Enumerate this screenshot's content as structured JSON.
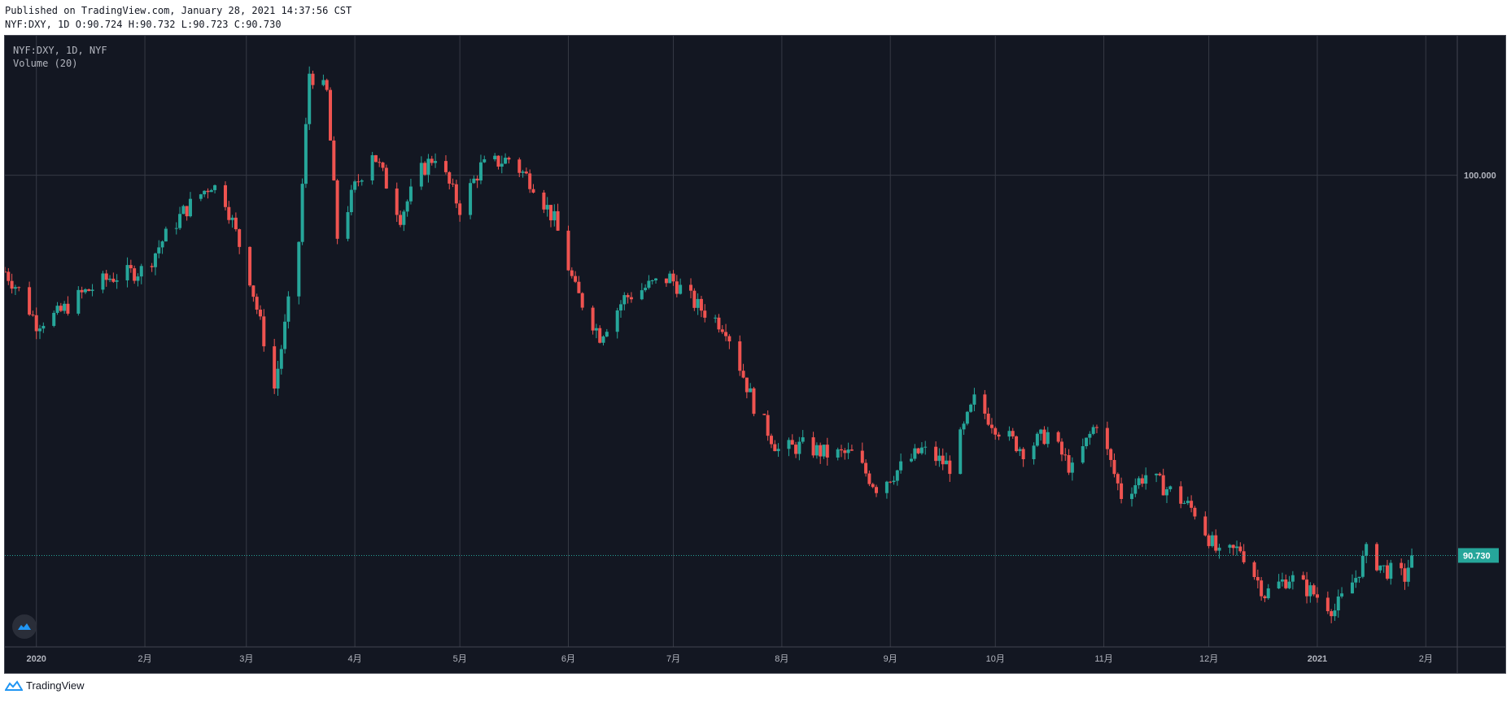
{
  "header": {
    "published": "Published on TradingView.com, January 28, 2021 14:37:56 CST",
    "symbol_line": "NYF:DXY, 1D O:90.724 H:90.732 L:90.723 C:90.730"
  },
  "legend": {
    "symbol": "NYF:DXY, 1D, NYF",
    "volume": "Volume (20)"
  },
  "footer": {
    "brand": "TradingView"
  },
  "colors": {
    "up": "#26a69a",
    "down": "#ef5350",
    "background": "#131722",
    "grid": "#363a45"
  },
  "chart_data": {
    "type": "candlestick",
    "ylim": [
      88.5,
      103.4
    ],
    "y_ticks": [
      {
        "value": 100,
        "label": "100.000"
      }
    ],
    "last_price": {
      "value": 90.73,
      "label": "90.730"
    },
    "x_ticks": [
      "2020",
      "2月",
      "3月",
      "4月",
      "5月",
      "6月",
      "7月",
      "8月",
      "9月",
      "10月",
      "11月",
      "12月",
      "2021",
      "2月"
    ],
    "x_tick_bold": [
      true,
      false,
      false,
      false,
      false,
      false,
      false,
      false,
      false,
      false,
      false,
      false,
      true,
      false
    ],
    "x_tick_dates": [
      "2020-01-01",
      "2020-02-01",
      "2020-03-01",
      "2020-04-01",
      "2020-05-01",
      "2020-06-01",
      "2020-07-01",
      "2020-08-01",
      "2020-09-01",
      "2020-10-01",
      "2020-11-01",
      "2020-12-01",
      "2021-01-01",
      "2021-02-01"
    ],
    "x_start": "2019-12-23",
    "x_end": "2021-02-10",
    "anchors": [
      [
        "2019-12-23",
        97.65
      ],
      [
        "2019-12-27",
        97.2
      ],
      [
        "2020-01-01",
        96.4
      ],
      [
        "2020-01-07",
        96.6
      ],
      [
        "2020-01-14",
        97.1
      ],
      [
        "2020-01-22",
        97.5
      ],
      [
        "2020-02-01",
        97.7
      ],
      [
        "2020-02-06",
        98.4
      ],
      [
        "2020-02-12",
        99.1
      ],
      [
        "2020-02-20",
        99.8
      ],
      [
        "2020-02-24",
        99.4
      ],
      [
        "2020-03-02",
        97.5
      ],
      [
        "2020-03-06",
        96.0
      ],
      [
        "2020-03-09",
        94.8
      ],
      [
        "2020-03-12",
        96.3
      ],
      [
        "2020-03-16",
        98.4
      ],
      [
        "2020-03-19",
        102.5
      ],
      [
        "2020-03-24",
        102.0
      ],
      [
        "2020-03-27",
        98.5
      ],
      [
        "2020-04-01",
        99.7
      ],
      [
        "2020-04-06",
        100.6
      ],
      [
        "2020-04-14",
        99.0
      ],
      [
        "2020-04-20",
        100.1
      ],
      [
        "2020-04-24",
        100.5
      ],
      [
        "2020-05-01",
        99.2
      ],
      [
        "2020-05-07",
        100.2
      ],
      [
        "2020-05-15",
        100.4
      ],
      [
        "2020-05-22",
        99.8
      ],
      [
        "2020-05-28",
        98.9
      ],
      [
        "2020-06-03",
        97.2
      ],
      [
        "2020-06-10",
        96.1
      ],
      [
        "2020-06-17",
        97.0
      ],
      [
        "2020-06-24",
        97.3
      ],
      [
        "2020-06-30",
        97.5
      ],
      [
        "2020-07-08",
        96.8
      ],
      [
        "2020-07-16",
        96.3
      ],
      [
        "2020-07-24",
        94.4
      ],
      [
        "2020-07-31",
        93.3
      ],
      [
        "2020-08-07",
        93.4
      ],
      [
        "2020-08-14",
        93.2
      ],
      [
        "2020-08-21",
        93.2
      ],
      [
        "2020-08-28",
        92.4
      ],
      [
        "2020-09-03",
        92.8
      ],
      [
        "2020-09-10",
        93.3
      ],
      [
        "2020-09-18",
        92.9
      ],
      [
        "2020-09-25",
        94.5
      ],
      [
        "2020-10-02",
        93.8
      ],
      [
        "2020-10-09",
        93.3
      ],
      [
        "2020-10-16",
        93.7
      ],
      [
        "2020-10-23",
        92.8
      ],
      [
        "2020-10-30",
        94.0
      ],
      [
        "2020-11-06",
        92.2
      ],
      [
        "2020-11-13",
        92.7
      ],
      [
        "2020-11-20",
        92.3
      ],
      [
        "2020-11-27",
        91.8
      ],
      [
        "2020-12-04",
        90.7
      ],
      [
        "2020-12-10",
        90.9
      ],
      [
        "2020-12-17",
        89.8
      ],
      [
        "2020-12-24",
        90.2
      ],
      [
        "2020-12-31",
        89.8
      ],
      [
        "2021-01-06",
        89.4
      ],
      [
        "2021-01-12",
        90.2
      ],
      [
        "2021-01-15",
        90.8
      ],
      [
        "2021-01-20",
        90.4
      ],
      [
        "2021-01-26",
        90.2
      ],
      [
        "2021-01-28",
        90.73
      ]
    ]
  }
}
